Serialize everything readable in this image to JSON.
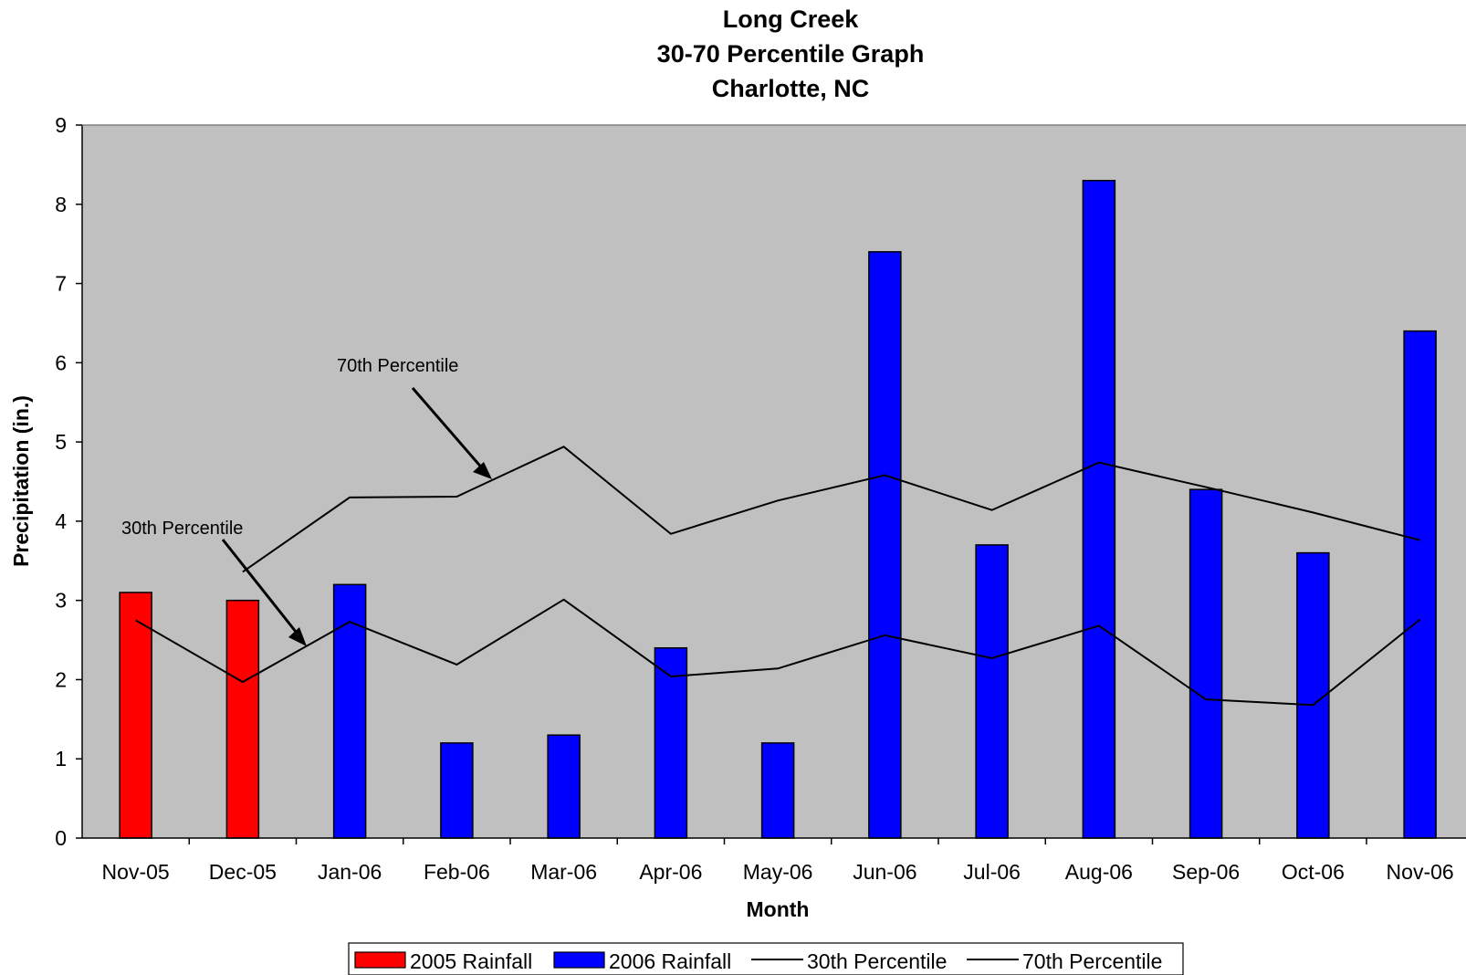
{
  "chart_data": {
    "type": "bar",
    "title_lines": [
      "Long Creek",
      "30-70 Percentile Graph",
      "Charlotte, NC"
    ],
    "xlabel": "Month",
    "ylabel": "Precipitation (in.)",
    "ylim": [
      0,
      9
    ],
    "yticks": [
      "0",
      "1",
      "2",
      "3",
      "4",
      "5",
      "6",
      "7",
      "8",
      "9"
    ],
    "categories": [
      "Nov-05",
      "Dec-05",
      "Jan-06",
      "Feb-06",
      "Mar-06",
      "Apr-06",
      "May-06",
      "Jun-06",
      "Jul-06",
      "Aug-06",
      "Sep-06",
      "Oct-06",
      "Nov-06"
    ],
    "series": [
      {
        "name": "2005 Rainfall",
        "kind": "bar",
        "color": "#ff0000",
        "values": [
          3.1,
          3.0,
          null,
          null,
          null,
          null,
          null,
          null,
          null,
          null,
          null,
          null,
          null
        ]
      },
      {
        "name": "2006 Rainfall",
        "kind": "bar",
        "color": "#0000ff",
        "values": [
          null,
          null,
          3.2,
          1.2,
          1.3,
          2.4,
          1.2,
          7.4,
          3.7,
          8.3,
          4.4,
          3.6,
          6.4
        ]
      },
      {
        "name": "30th Percentile",
        "kind": "line",
        "color": "#000000",
        "values": [
          2.75,
          1.97,
          2.73,
          2.19,
          3.01,
          2.04,
          2.14,
          2.56,
          2.27,
          2.68,
          1.75,
          1.68,
          2.76
        ]
      },
      {
        "name": "70th Percentile",
        "kind": "line",
        "color": "#000000",
        "values": [
          null,
          3.36,
          4.3,
          4.31,
          4.94,
          3.84,
          4.26,
          4.58,
          4.14,
          4.74,
          4.43,
          4.11,
          3.76
        ]
      }
    ],
    "annotations": [
      "70th Percentile",
      "30th Percentile"
    ],
    "plot_background": "#c0c0c0",
    "grid": false,
    "legend_position": "bottom"
  }
}
